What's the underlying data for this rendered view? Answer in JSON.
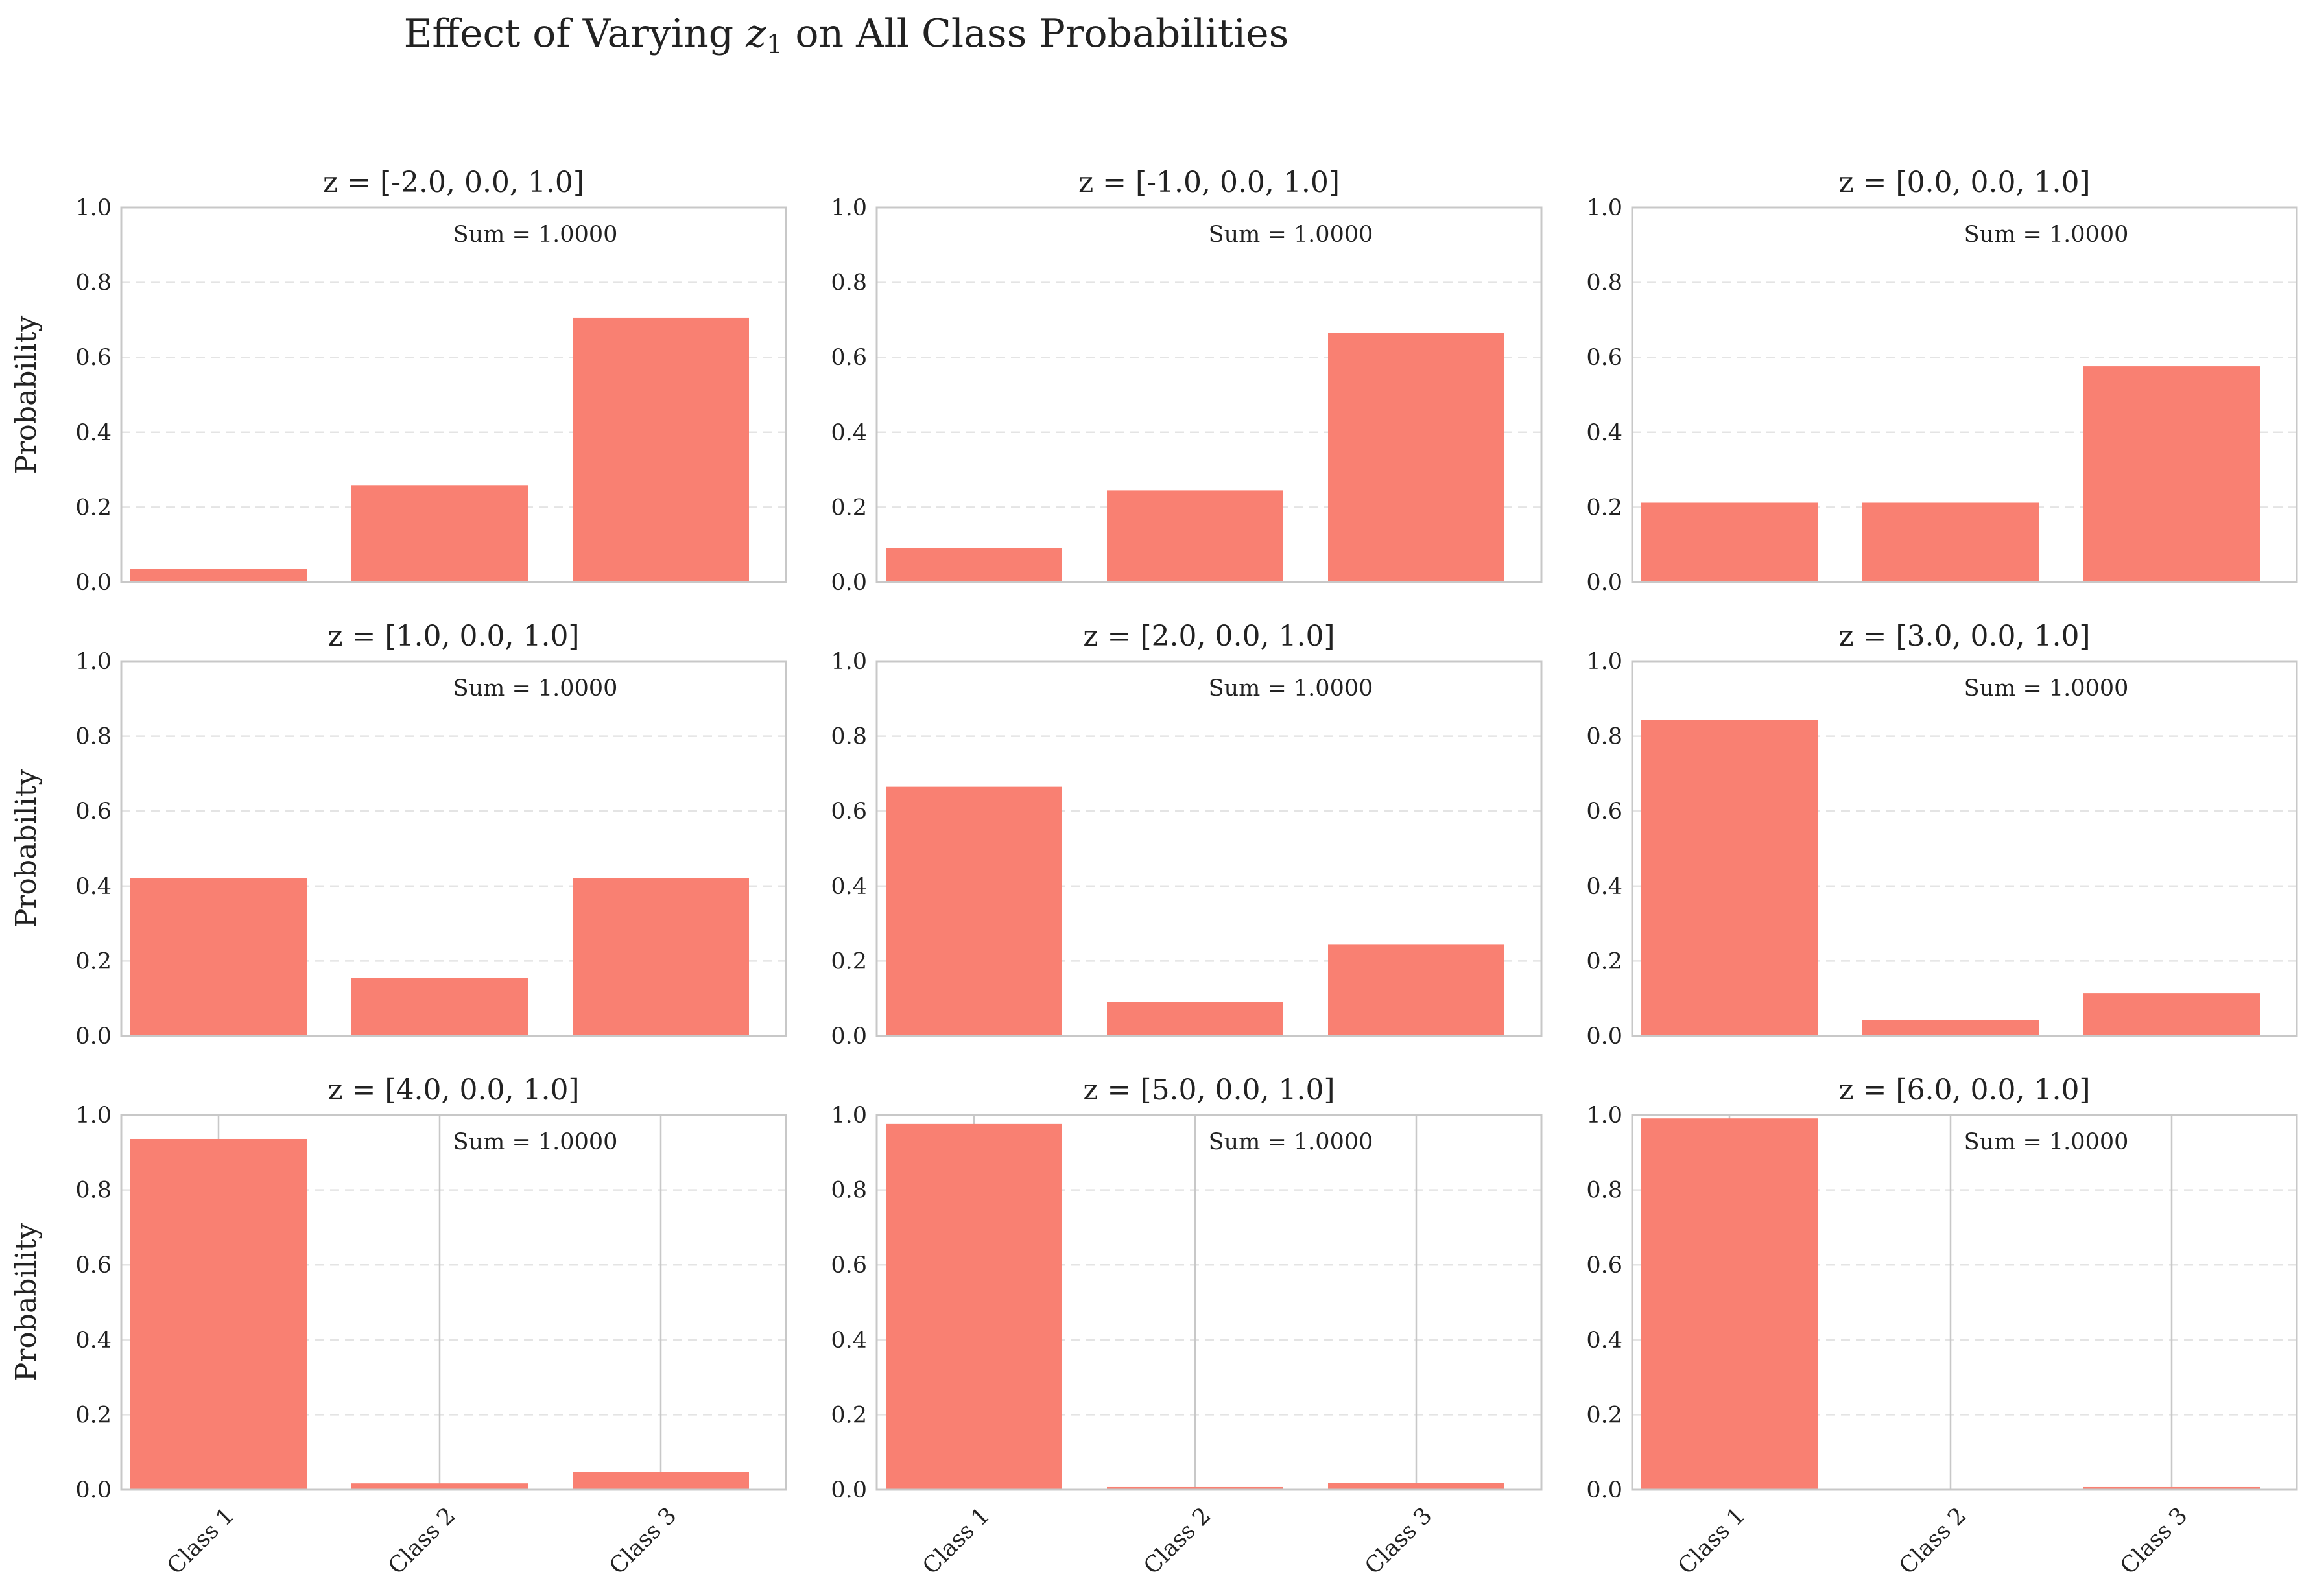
{
  "figure": {
    "title_prefix": "Effect of Varying ",
    "title_var": "z",
    "title_var_sub": "1",
    "title_suffix": " on All Class Probabilities"
  },
  "style": {
    "bar_color": "#f98072",
    "frame_color": "#c8c8c8",
    "grid_color": "#e4e4e4",
    "text_color": "#222222"
  },
  "chart_data": [
    {
      "type": "bar",
      "title": "z = [-2.0, 0.0, 1.0]",
      "categories": [
        "Class 1",
        "Class 2",
        "Class 3"
      ],
      "values": [
        0.035,
        0.259,
        0.706
      ],
      "ylabel": "Probability",
      "ylim": [
        0,
        1.0
      ],
      "yticks": [
        "0.0",
        "0.2",
        "0.4",
        "0.6",
        "0.8",
        "1.0"
      ],
      "annotation": "Sum = 1.0000",
      "show_xticklabels": false,
      "xgrid": false
    },
    {
      "type": "bar",
      "title": "z = [-1.0, 0.0, 1.0]",
      "categories": [
        "Class 1",
        "Class 2",
        "Class 3"
      ],
      "values": [
        0.09,
        0.245,
        0.665
      ],
      "ylabel": "",
      "ylim": [
        0,
        1.0
      ],
      "yticks": [
        "0.0",
        "0.2",
        "0.4",
        "0.6",
        "0.8",
        "1.0"
      ],
      "annotation": "Sum = 1.0000",
      "show_xticklabels": false,
      "xgrid": false
    },
    {
      "type": "bar",
      "title": "z = [0.0, 0.0, 1.0]",
      "categories": [
        "Class 1",
        "Class 2",
        "Class 3"
      ],
      "values": [
        0.212,
        0.212,
        0.576
      ],
      "ylabel": "",
      "ylim": [
        0,
        1.0
      ],
      "yticks": [
        "0.0",
        "0.2",
        "0.4",
        "0.6",
        "0.8",
        "1.0"
      ],
      "annotation": "Sum = 1.0000",
      "show_xticklabels": false,
      "xgrid": false
    },
    {
      "type": "bar",
      "title": "z = [1.0, 0.0, 1.0]",
      "categories": [
        "Class 1",
        "Class 2",
        "Class 3"
      ],
      "values": [
        0.422,
        0.155,
        0.422
      ],
      "ylabel": "Probability",
      "ylim": [
        0,
        1.0
      ],
      "yticks": [
        "0.0",
        "0.2",
        "0.4",
        "0.6",
        "0.8",
        "1.0"
      ],
      "annotation": "Sum = 1.0000",
      "show_xticklabels": false,
      "xgrid": false
    },
    {
      "type": "bar",
      "title": "z = [2.0, 0.0, 1.0]",
      "categories": [
        "Class 1",
        "Class 2",
        "Class 3"
      ],
      "values": [
        0.665,
        0.09,
        0.245
      ],
      "ylabel": "",
      "ylim": [
        0,
        1.0
      ],
      "yticks": [
        "0.0",
        "0.2",
        "0.4",
        "0.6",
        "0.8",
        "1.0"
      ],
      "annotation": "Sum = 1.0000",
      "show_xticklabels": false,
      "xgrid": false
    },
    {
      "type": "bar",
      "title": "z = [3.0, 0.0, 1.0]",
      "categories": [
        "Class 1",
        "Class 2",
        "Class 3"
      ],
      "values": [
        0.844,
        0.042,
        0.114
      ],
      "ylabel": "",
      "ylim": [
        0,
        1.0
      ],
      "yticks": [
        "0.0",
        "0.2",
        "0.4",
        "0.6",
        "0.8",
        "1.0"
      ],
      "annotation": "Sum = 1.0000",
      "show_xticklabels": false,
      "xgrid": false
    },
    {
      "type": "bar",
      "title": "z = [4.0, 0.0, 1.0]",
      "categories": [
        "Class 1",
        "Class 2",
        "Class 3"
      ],
      "values": [
        0.936,
        0.017,
        0.047
      ],
      "ylabel": "Probability",
      "ylim": [
        0,
        1.0
      ],
      "yticks": [
        "0.0",
        "0.2",
        "0.4",
        "0.6",
        "0.8",
        "1.0"
      ],
      "annotation": "Sum = 1.0000",
      "show_xticklabels": true,
      "xgrid": true
    },
    {
      "type": "bar",
      "title": "z = [5.0, 0.0, 1.0]",
      "categories": [
        "Class 1",
        "Class 2",
        "Class 3"
      ],
      "values": [
        0.976,
        0.007,
        0.018
      ],
      "ylabel": "",
      "ylim": [
        0,
        1.0
      ],
      "yticks": [
        "0.0",
        "0.2",
        "0.4",
        "0.6",
        "0.8",
        "1.0"
      ],
      "annotation": "Sum = 1.0000",
      "show_xticklabels": true,
      "xgrid": true
    },
    {
      "type": "bar",
      "title": "z = [6.0, 0.0, 1.0]",
      "categories": [
        "Class 1",
        "Class 2",
        "Class 3"
      ],
      "values": [
        0.991,
        0.002,
        0.007
      ],
      "ylabel": "",
      "ylim": [
        0,
        1.0
      ],
      "yticks": [
        "0.0",
        "0.2",
        "0.4",
        "0.6",
        "0.8",
        "1.0"
      ],
      "annotation": "Sum = 1.0000",
      "show_xticklabels": true,
      "xgrid": true
    }
  ]
}
